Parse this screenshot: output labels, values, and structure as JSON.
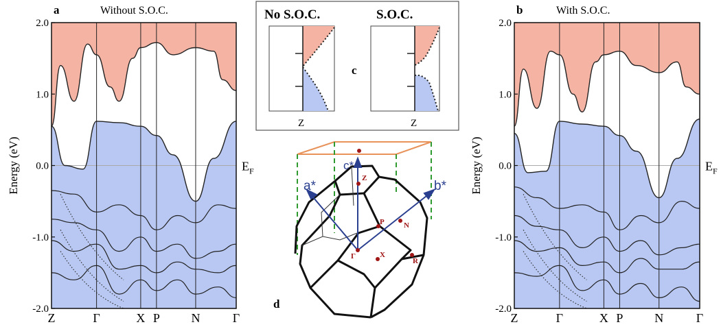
{
  "panels": {
    "a": {
      "letter": "a",
      "title": "Without S.O.C."
    },
    "b": {
      "letter": "b",
      "title": "With S.O.C."
    },
    "c": {
      "letter": "c",
      "left_title": "No S.O.C.",
      "right_title": "S.O.C.",
      "k_label": "Z"
    },
    "d": {
      "letter": "d"
    }
  },
  "axis": {
    "ylabel": "Energy (eV)",
    "fermi_label": "E",
    "fermi_sub": "F",
    "k_labels": [
      "Z",
      "Γ",
      "X",
      "P",
      "N",
      "Γ"
    ]
  },
  "brillouin_zone": {
    "vectors": [
      "a*",
      "b*",
      "c*"
    ],
    "points": [
      "Z",
      "P",
      "N",
      "Γ",
      "X",
      "R"
    ]
  },
  "colors": {
    "conduction": "#f5b3a3",
    "valence": "#b9c8f3",
    "vectors": "#2a3f8f",
    "box": "#e8925a",
    "dashes": "#2f9a2f",
    "points": "#a01515"
  },
  "chart_data": [
    {
      "type": "line",
      "title": "Without S.O.C.",
      "ylabel": "Energy (eV)",
      "ylim": [
        -2.0,
        2.0
      ],
      "yticks": [
        -2.0,
        -1.0,
        0.0,
        1.0,
        2.0
      ],
      "k_path": [
        "Z",
        "Γ",
        "X",
        "P",
        "N",
        "Γ"
      ],
      "k_pos": [
        0,
        1.0,
        1.98,
        2.33,
        3.2,
        4.1
      ],
      "series": [
        {
          "name": "valence",
          "x": [
            0,
            0.3,
            0.7,
            1.0,
            1.5,
            1.98,
            2.33,
            2.7,
            3.2,
            3.6,
            4.1
          ],
          "y": [
            0.55,
            0.0,
            -0.05,
            0.62,
            0.6,
            0.55,
            0.42,
            0.15,
            -0.5,
            0.1,
            0.62
          ]
        },
        {
          "name": "conduction",
          "x": [
            0,
            0.2,
            0.5,
            0.8,
            1.0,
            1.3,
            1.5,
            1.8,
            1.98,
            2.33,
            2.7,
            3.2,
            3.6,
            3.8,
            4.1
          ],
          "y": [
            0.55,
            1.4,
            0.9,
            1.7,
            1.55,
            1.1,
            0.9,
            1.5,
            1.65,
            1.72,
            1.55,
            1.65,
            1.6,
            1.2,
            1.05
          ]
        },
        {
          "name": "band",
          "x": [
            0,
            0.5,
            1.0,
            1.5,
            1.98,
            2.33,
            2.8,
            3.2,
            3.7,
            4.1
          ],
          "y": [
            -0.35,
            -0.4,
            -0.65,
            -0.55,
            -0.7,
            -0.9,
            -0.7,
            -0.8,
            -0.55,
            -0.6
          ]
        },
        {
          "name": "band",
          "x": [
            0,
            0.5,
            1.0,
            1.5,
            1.98,
            2.33,
            2.8,
            3.2,
            3.7,
            4.1
          ],
          "y": [
            -0.75,
            -0.8,
            -0.9,
            -1.2,
            -1.0,
            -1.2,
            -1.1,
            -1.3,
            -1.2,
            -1.1
          ]
        },
        {
          "name": "band",
          "x": [
            0,
            0.5,
            1.0,
            1.5,
            1.98,
            2.33,
            2.8,
            3.2,
            3.7,
            4.1
          ],
          "y": [
            -1.05,
            -1.2,
            -1.1,
            -1.45,
            -1.4,
            -1.5,
            -1.35,
            -1.45,
            -1.5,
            -1.4
          ]
        },
        {
          "name": "band",
          "x": [
            0,
            0.5,
            1.0,
            1.5,
            1.98,
            2.33,
            2.8,
            3.2,
            3.7,
            4.1
          ],
          "y": [
            -1.5,
            -1.6,
            -1.4,
            -1.8,
            -1.6,
            -1.75,
            -1.6,
            -1.8,
            -1.7,
            -1.85
          ]
        }
      ]
    },
    {
      "type": "line",
      "title": "With S.O.C.",
      "ylabel": "Energy (eV)",
      "ylim": [
        -2.0,
        2.0
      ],
      "yticks": [
        -2.0,
        -1.0,
        0.0,
        1.0,
        2.0
      ],
      "k_path": [
        "Z",
        "Γ",
        "X",
        "P",
        "N",
        "Γ"
      ],
      "k_pos": [
        0,
        1.0,
        1.98,
        2.33,
        3.2,
        4.1
      ],
      "series": [
        {
          "name": "valence",
          "x": [
            0,
            0.3,
            0.7,
            1.0,
            1.5,
            1.98,
            2.33,
            2.7,
            3.2,
            3.6,
            4.1
          ],
          "y": [
            0.45,
            -0.1,
            -0.08,
            0.62,
            0.58,
            0.55,
            0.42,
            0.2,
            -0.45,
            0.1,
            0.65
          ]
        },
        {
          "name": "conduction",
          "x": [
            0,
            0.2,
            0.5,
            0.8,
            1.0,
            1.3,
            1.5,
            1.8,
            1.98,
            2.33,
            2.7,
            3.2,
            3.6,
            3.8,
            4.1
          ],
          "y": [
            0.55,
            1.35,
            0.8,
            1.6,
            1.55,
            1.0,
            0.75,
            1.45,
            1.55,
            1.6,
            1.4,
            1.3,
            1.45,
            1.1,
            1.0
          ]
        },
        {
          "name": "band",
          "x": [
            0,
            0.5,
            1.0,
            1.5,
            1.98,
            2.33,
            2.8,
            3.2,
            3.7,
            4.1
          ],
          "y": [
            -0.3,
            -0.45,
            -0.6,
            -0.55,
            -0.65,
            -0.9,
            -0.7,
            -0.8,
            -0.5,
            -0.6
          ]
        },
        {
          "name": "band",
          "x": [
            0,
            0.5,
            1.0,
            1.5,
            1.98,
            2.33,
            2.8,
            3.2,
            3.7,
            4.1
          ],
          "y": [
            -0.7,
            -0.85,
            -0.9,
            -1.15,
            -1.0,
            -1.2,
            -1.05,
            -1.25,
            -1.15,
            -1.1
          ]
        },
        {
          "name": "band",
          "x": [
            0,
            0.5,
            1.0,
            1.5,
            1.98,
            2.33,
            2.8,
            3.2,
            3.7,
            4.1
          ],
          "y": [
            -1.05,
            -1.2,
            -1.15,
            -1.4,
            -1.35,
            -1.5,
            -1.3,
            -1.45,
            -1.45,
            -1.35
          ]
        },
        {
          "name": "band",
          "x": [
            0,
            0.5,
            1.0,
            1.5,
            1.98,
            2.33,
            2.8,
            3.2,
            3.7,
            4.1
          ],
          "y": [
            -1.5,
            -1.55,
            -1.4,
            -1.75,
            -1.6,
            -1.8,
            -1.65,
            -1.85,
            -1.7,
            -1.9
          ]
        }
      ]
    }
  ]
}
